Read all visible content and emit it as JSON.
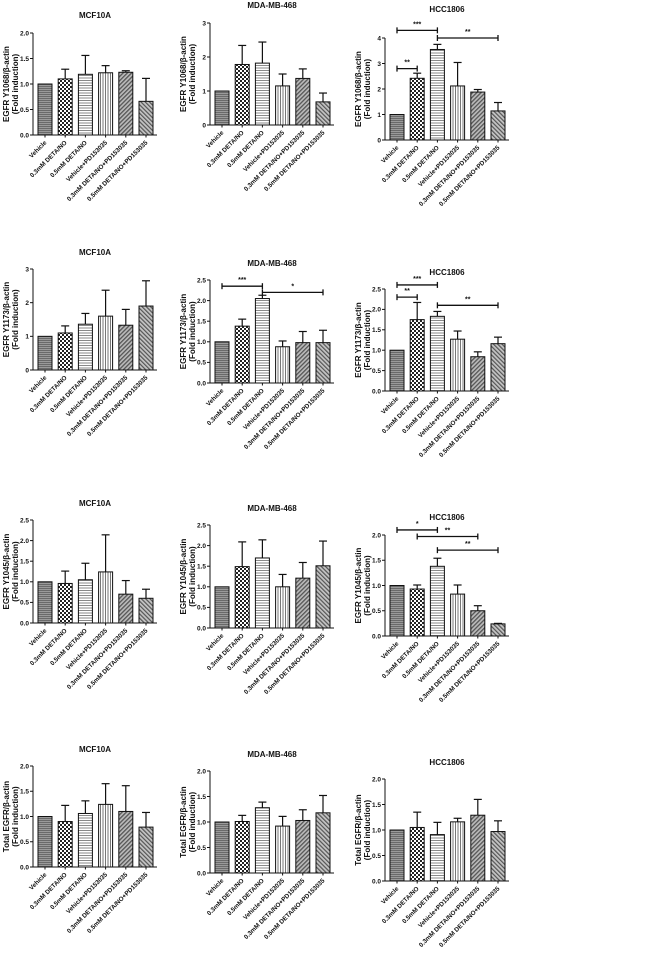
{
  "chart_data": [
    {
      "type": "bar",
      "title": "MCF10A",
      "ylabel": [
        "EGFR Y1068/β-actin",
        "(Fold induction)"
      ],
      "ylim": [
        0,
        2
      ],
      "ticks": [
        0,
        0.5,
        1,
        1.5,
        2
      ],
      "categories": [
        "Vehicle",
        "0.3mM DETA/NO",
        "0.5mM DETA/NO",
        "Vehicle+PD153035",
        "0.3mM DETA/NO+PD153035",
        "0.5mM DETA/NO+PD153035"
      ],
      "values": [
        1.0,
        1.1,
        1.19,
        1.22,
        1.23,
        0.66
      ],
      "errors": [
        0,
        0.19,
        0.37,
        0.14,
        0.03,
        0.45
      ],
      "significance": []
    },
    {
      "type": "bar",
      "title": "MDA-MB-468",
      "ylabel": [
        "EGFR Y1068/β-actin",
        "(Fold induction)"
      ],
      "ylim": [
        0,
        3
      ],
      "ticks": [
        0,
        1,
        2,
        3
      ],
      "categories": [
        "Vehicle",
        "0.3mM DETA/NO",
        "0.5mM DETA/NO",
        "Vehicle+PD153035",
        "0.3mM DETA/NO+PD153035",
        "0.5mM DETA/NO+PD153035"
      ],
      "values": [
        1.0,
        1.78,
        1.82,
        1.15,
        1.37,
        0.68
      ],
      "errors": [
        0,
        0.56,
        0.62,
        0.35,
        0.28,
        0.26
      ],
      "significance": []
    },
    {
      "type": "bar",
      "title": "HCC1806",
      "ylabel": [
        "EGFR Y1068/β-actin",
        "(Fold induction)"
      ],
      "ylim": [
        0,
        4
      ],
      "ticks": [
        0,
        1,
        2,
        3,
        4
      ],
      "categories": [
        "Vehicle",
        "0.3mM DETA/NO",
        "0.5mM DETA/NO",
        "Vehicle+PD153035",
        "0.3mM DETA/NO+PD153035",
        "0.5mM DETA/NO+PD153035"
      ],
      "values": [
        1.0,
        2.42,
        3.55,
        2.12,
        1.88,
        1.14
      ],
      "errors": [
        0,
        0.2,
        0.2,
        0.92,
        0.1,
        0.33
      ],
      "significance": [
        {
          "from": 0,
          "to": 1,
          "label": "**",
          "level": 2.8
        },
        {
          "from": 0,
          "to": 2,
          "label": "***",
          "level": 4.3
        },
        {
          "from": 2,
          "to": 5,
          "label": "**",
          "level": 4.0
        }
      ]
    },
    {
      "type": "bar",
      "title": "MCF10A",
      "ylabel": [
        "EGFR Y1173/β-actin",
        "(Fold induction)"
      ],
      "ylim": [
        0,
        3
      ],
      "ticks": [
        0,
        1,
        2,
        3
      ],
      "categories": [
        "Vehicle",
        "0.3mM DETA/NO",
        "0.5mM DETA/NO",
        "Vehicle+PD153035",
        "0.3mM DETA/NO+PD153035",
        "0.5mM DETA/NO+PD153035"
      ],
      "values": [
        1.0,
        1.1,
        1.36,
        1.6,
        1.33,
        1.9
      ],
      "errors": [
        0,
        0.21,
        0.32,
        0.77,
        0.47,
        0.75
      ],
      "significance": []
    },
    {
      "type": "bar",
      "title": "MDA-MB-468",
      "ylabel": [
        "EGFR Y1173/β-actin",
        "(Fold induction)"
      ],
      "ylim": [
        0,
        2.5
      ],
      "ticks": [
        0,
        0.5,
        1,
        1.5,
        2,
        2.5
      ],
      "categories": [
        "Vehicle",
        "0.3mM DETA/NO",
        "0.5mM DETA/NO",
        "Vehicle+PD153035",
        "0.3mM DETA/NO+PD153035",
        "0.5mM DETA/NO+PD153035"
      ],
      "values": [
        1.0,
        1.38,
        2.05,
        0.88,
        0.98,
        0.98
      ],
      "errors": [
        0,
        0.17,
        0.08,
        0.14,
        0.27,
        0.3
      ],
      "significance": [
        {
          "from": 0,
          "to": 2,
          "label": "***",
          "level": 2.35
        },
        {
          "from": 2,
          "to": 5,
          "label": "*",
          "level": 2.2
        }
      ]
    },
    {
      "type": "bar",
      "title": "HCC1806",
      "ylabel": [
        "EGFR Y1173/β-actin",
        "(Fold induction)"
      ],
      "ylim": [
        0,
        2.5
      ],
      "ticks": [
        0,
        0.5,
        1,
        1.5,
        2,
        2.5
      ],
      "categories": [
        "Vehicle",
        "0.3mM DETA/NO",
        "0.5mM DETA/NO",
        "Vehicle+PD153035",
        "0.3mM DETA/NO+PD153035",
        "0.5mM DETA/NO+PD153035"
      ],
      "values": [
        1.0,
        1.75,
        1.83,
        1.27,
        0.84,
        1.16
      ],
      "errors": [
        0,
        0.42,
        0.12,
        0.2,
        0.12,
        0.16
      ],
      "significance": [
        {
          "from": 0,
          "to": 2,
          "label": "***",
          "level": 2.6
        },
        {
          "from": 0,
          "to": 1,
          "label": "**",
          "level": 2.3
        },
        {
          "from": 2,
          "to": 5,
          "label": "**",
          "level": 2.1
        }
      ]
    },
    {
      "type": "bar",
      "title": "MCF10A",
      "ylabel": [
        "EGFR Y1045/β-actin",
        "(Fold induction)"
      ],
      "ylim": [
        0,
        2.5
      ],
      "ticks": [
        0,
        0.5,
        1,
        1.5,
        2,
        2.5
      ],
      "categories": [
        "Vehicle",
        "0.3mM DETA/NO",
        "0.5mM DETA/NO",
        "Vehicle+PD153035",
        "0.3mM DETA/NO+PD153035",
        "0.5mM DETA/NO+PD153035"
      ],
      "values": [
        1.0,
        0.96,
        1.05,
        1.24,
        0.7,
        0.6
      ],
      "errors": [
        0,
        0.3,
        0.4,
        0.9,
        0.33,
        0.22
      ],
      "significance": []
    },
    {
      "type": "bar",
      "title": "MDA-MB-468",
      "ylabel": [
        "EGFR Y1045/β-actin",
        "(Fold induction)"
      ],
      "ylim": [
        0,
        2.5
      ],
      "ticks": [
        0,
        0.5,
        1,
        1.5,
        2,
        2.5
      ],
      "categories": [
        "Vehicle",
        "0.3mM DETA/NO",
        "0.5mM DETA/NO",
        "Vehicle+PD153035",
        "0.3mM DETA/NO+PD153035",
        "0.5mM DETA/NO+PD153035"
      ],
      "values": [
        1.0,
        1.49,
        1.7,
        1.0,
        1.21,
        1.51
      ],
      "errors": [
        0,
        0.6,
        0.44,
        0.3,
        0.38,
        0.6
      ],
      "significance": []
    },
    {
      "type": "bar",
      "title": "HCC1806",
      "ylabel": [
        "EGFR Y1045/β-actin",
        "(Fold induction)"
      ],
      "ylim": [
        0,
        2
      ],
      "ticks": [
        0,
        0.5,
        1,
        1.5,
        2
      ],
      "categories": [
        "Vehicle",
        "0.3mM DETA/NO",
        "0.5mM DETA/NO",
        "Vehicle+PD153035",
        "0.3mM DETA/NO+PD153035",
        "0.5mM DETA/NO+PD153035"
      ],
      "values": [
        1.0,
        0.93,
        1.38,
        0.83,
        0.5,
        0.24
      ],
      "errors": [
        0,
        0.08,
        0.16,
        0.18,
        0.1,
        0.01
      ],
      "significance": [
        {
          "from": 0,
          "to": 2,
          "label": "*",
          "level": 2.1
        },
        {
          "from": 1,
          "to": 4,
          "label": "**",
          "level": 1.97
        },
        {
          "from": 2,
          "to": 5,
          "label": "**",
          "level": 1.7
        }
      ]
    },
    {
      "type": "bar",
      "title": "MCF10A",
      "ylabel": [
        "Total EGFR/β-actin",
        "(Fold induction)"
      ],
      "ylim": [
        0,
        2
      ],
      "ticks": [
        0,
        0.5,
        1,
        1.5,
        2
      ],
      "categories": [
        "Vehicle",
        "0.3mM DETA/NO",
        "0.5mM DETA/NO",
        "Vehicle+PD153035",
        "0.3mM DETA/NO+PD153035",
        "0.5mM DETA/NO+PD153035"
      ],
      "values": [
        1.0,
        0.9,
        1.06,
        1.24,
        1.1,
        0.79
      ],
      "errors": [
        0,
        0.32,
        0.25,
        0.41,
        0.51,
        0.29
      ],
      "significance": []
    },
    {
      "type": "bar",
      "title": "MDA-MB-468",
      "ylabel": [
        "Total EGFR/β-actin",
        "(Fold induction)"
      ],
      "ylim": [
        0,
        2
      ],
      "ticks": [
        0,
        0.5,
        1,
        1.5,
        2
      ],
      "categories": [
        "Vehicle",
        "0.3mM DETA/NO",
        "0.5mM DETA/NO",
        "Vehicle+PD153035",
        "0.3mM DETA/NO+PD153035",
        "0.5mM DETA/NO+PD153035"
      ],
      "values": [
        1.0,
        1.01,
        1.28,
        0.92,
        1.03,
        1.18
      ],
      "errors": [
        0,
        0.12,
        0.11,
        0.19,
        0.21,
        0.34
      ],
      "significance": []
    },
    {
      "type": "bar",
      "title": "HCC1806",
      "ylabel": [
        "Total EGFR/β-actin",
        "(Fold induction)"
      ],
      "ylim": [
        0,
        2
      ],
      "ticks": [
        0,
        0.5,
        1,
        1.5,
        2
      ],
      "categories": [
        "Vehicle",
        "0.3mM DETA/NO",
        "0.5mM DETA/NO",
        "Vehicle+PD153035",
        "0.3mM DETA/NO+PD153035",
        "0.5mM DETA/NO+PD153035"
      ],
      "values": [
        1.0,
        1.05,
        0.91,
        1.16,
        1.29,
        0.97
      ],
      "errors": [
        0,
        0.3,
        0.24,
        0.07,
        0.31,
        0.21
      ],
      "significance": []
    }
  ]
}
